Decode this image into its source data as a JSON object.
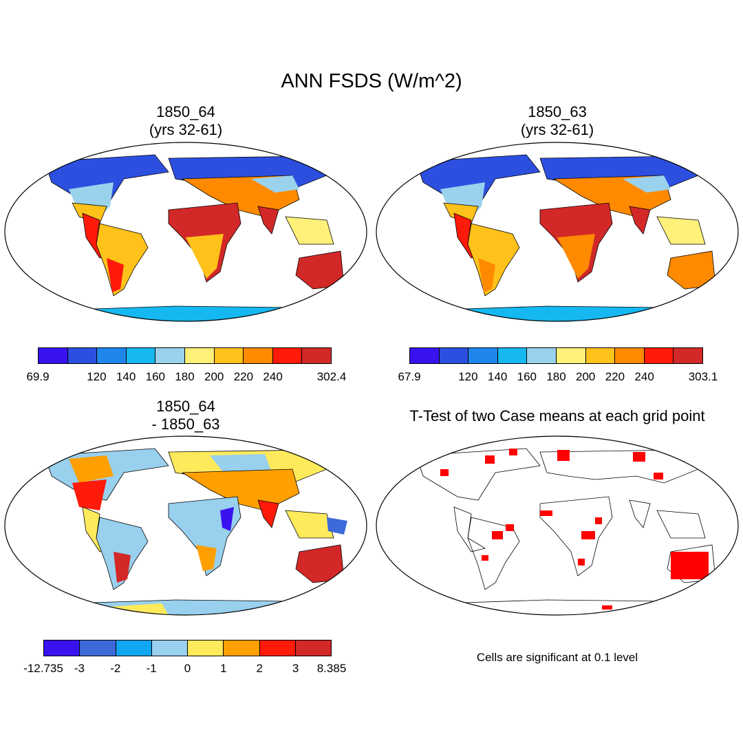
{
  "title": "ANN FSDS (W/m^2)",
  "panels": {
    "top_left": {
      "title1": "1850_64",
      "title2": "(yrs 32-61)"
    },
    "top_right": {
      "title1": "1850_63",
      "title2": "(yrs 32-61)"
    },
    "bottom_left": {
      "title1": "1850_64",
      "title2": "- 1850_63"
    },
    "bottom_right": {
      "title1": "T-Test of two Case means at each grid point",
      "note": "Cells are significant at 0.1 level",
      "significant_color": "#ff0000"
    }
  },
  "colorbars": {
    "absolute_colors": [
      "#3a12f0",
      "#2d4fe0",
      "#1f86ec",
      "#15b8f0",
      "#9ad2ee",
      "#fff07a",
      "#ffc21a",
      "#ff8a00",
      "#ff1a0a",
      "#d22828"
    ],
    "left_labels": [
      "69.9",
      "",
      "120",
      "140",
      "160",
      "180",
      "200",
      "220",
      "240",
      "",
      "302.4"
    ],
    "right_labels": [
      "67.9",
      "",
      "120",
      "140",
      "160",
      "180",
      "200",
      "220",
      "240",
      "",
      "303.1"
    ],
    "diff_colors": [
      "#3a12f0",
      "#3d6ad9",
      "#10a6f2",
      "#98d0ee",
      "#ffea5c",
      "#ffa000",
      "#ff1a0a",
      "#d22828"
    ],
    "diff_labels": [
      "-12.735",
      "-3",
      "-2",
      "-1",
      "0",
      "1",
      "2",
      "3",
      "8.385"
    ]
  }
}
